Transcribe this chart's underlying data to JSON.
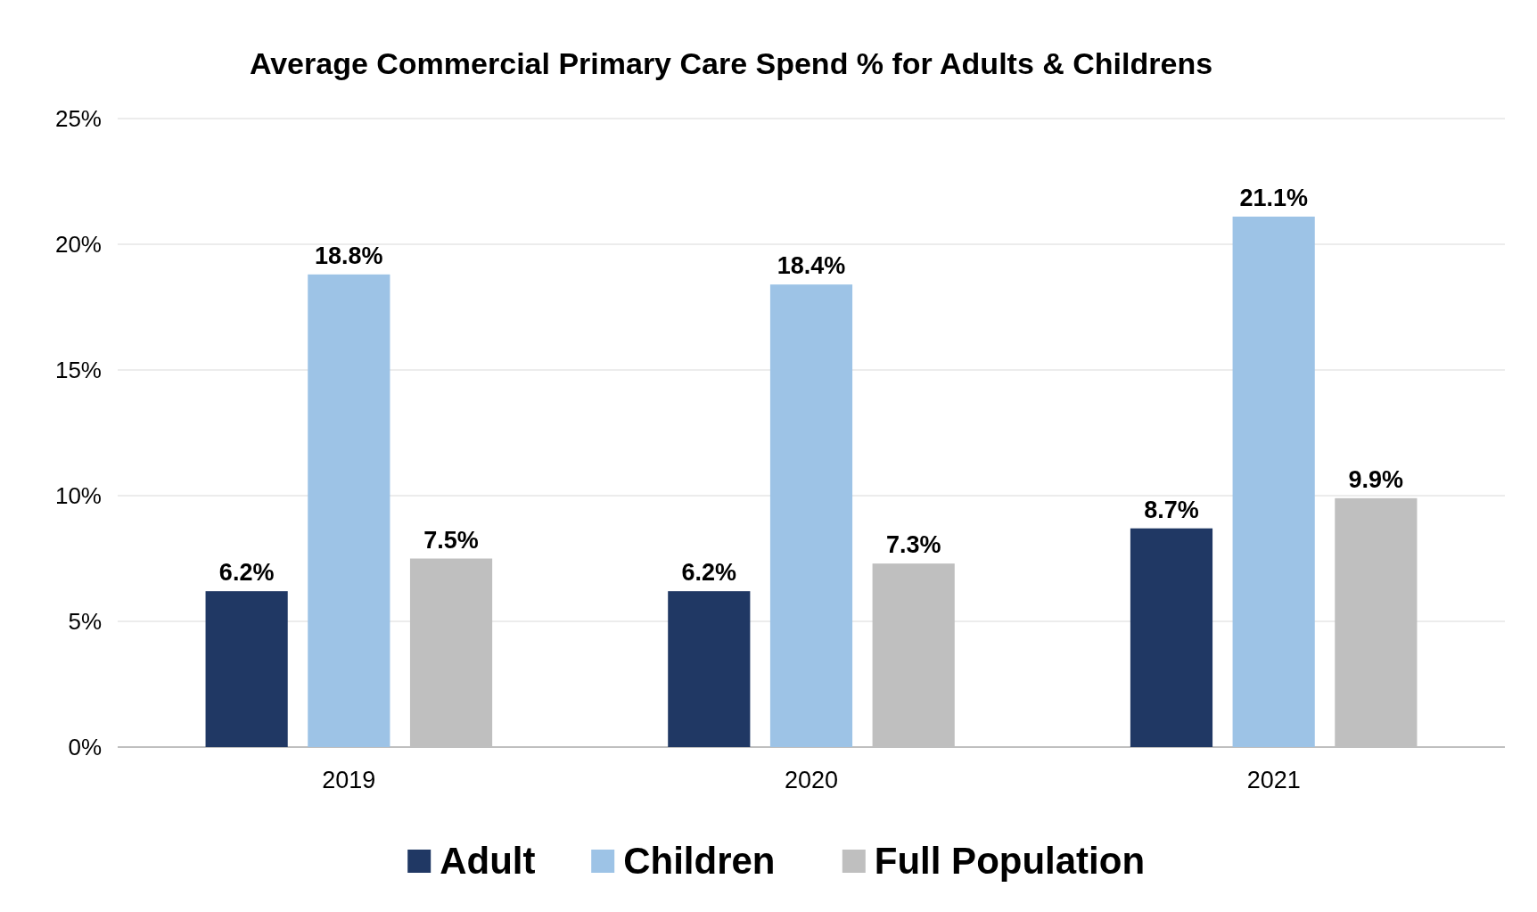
{
  "chart_data": {
    "type": "bar",
    "title": "Average Commercial Primary Care Spend % for Adults & Childrens",
    "categories": [
      "2019",
      "2020",
      "2021"
    ],
    "series": [
      {
        "name": "Adult",
        "color": "#203864",
        "values": [
          6.2,
          6.2,
          8.7
        ],
        "value_labels": [
          "6.2%",
          "6.2%",
          "8.7%"
        ]
      },
      {
        "name": "Children",
        "color": "#9dc3e6",
        "values": [
          18.8,
          18.4,
          21.1
        ],
        "value_labels": [
          "18.8%",
          "18.4%",
          "21.1%"
        ]
      },
      {
        "name": "Full Population",
        "color": "#bfbfbf",
        "values": [
          7.5,
          7.3,
          9.9
        ],
        "value_labels": [
          "7.5%",
          "7.3%",
          "9.9%"
        ]
      }
    ],
    "ylim": [
      0,
      25
    ],
    "yticks": [
      {
        "value": 0,
        "label": "0%"
      },
      {
        "value": 5,
        "label": "5%"
      },
      {
        "value": 10,
        "label": "10%"
      },
      {
        "value": 15,
        "label": "15%"
      },
      {
        "value": 20,
        "label": "20%"
      },
      {
        "value": 25,
        "label": "25%"
      }
    ],
    "grid": "y",
    "legend": "bottom"
  }
}
